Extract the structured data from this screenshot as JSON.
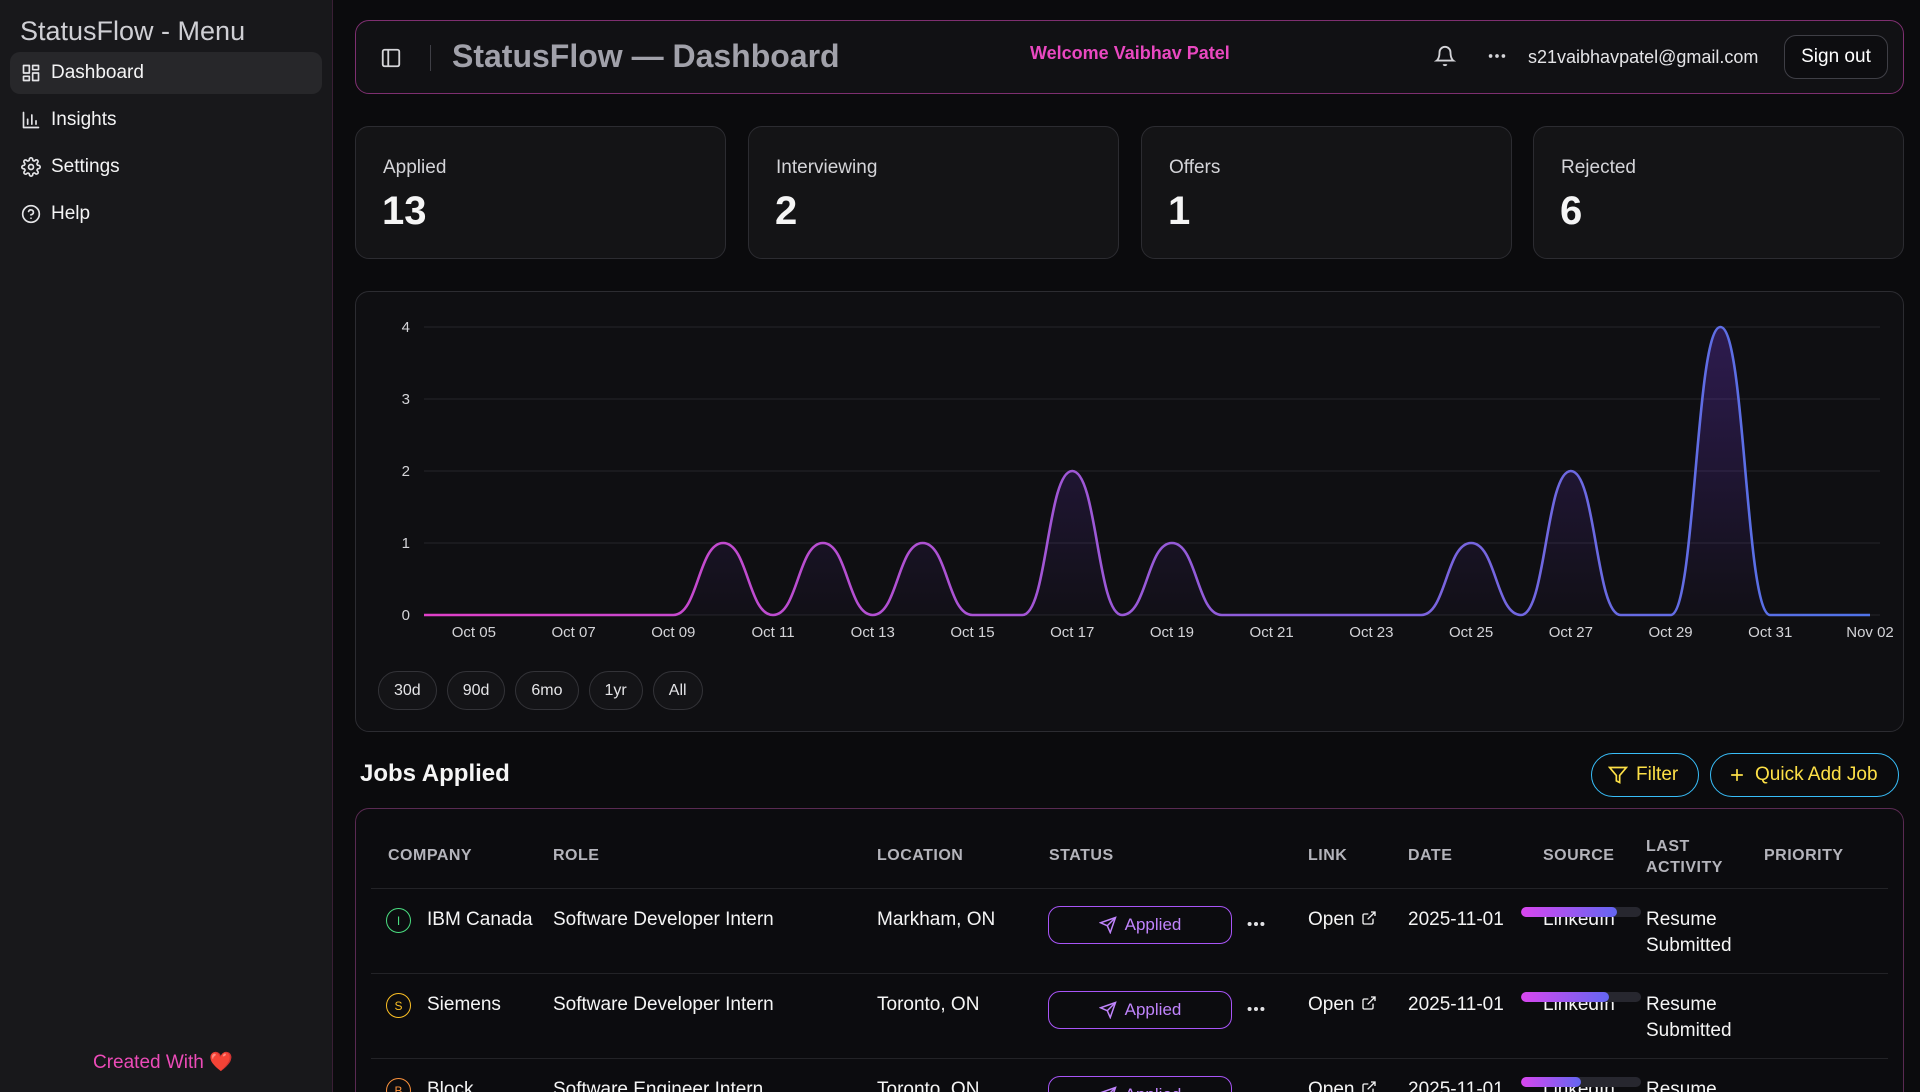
{
  "sidebar": {
    "title": "StatusFlow - Menu",
    "items": [
      {
        "label": "Dashboard",
        "icon": "dashboard-icon",
        "active": true
      },
      {
        "label": "Insights",
        "icon": "bar-chart-icon",
        "active": false
      },
      {
        "label": "Settings",
        "icon": "gear-icon",
        "active": false
      },
      {
        "label": "Help",
        "icon": "help-circle-icon",
        "active": false
      }
    ],
    "footer": "Created With ❤️"
  },
  "header": {
    "title": "StatusFlow — Dashboard",
    "welcome": "Welcome Vaibhav Patel",
    "email": "s21vaibhavpatel@gmail.com",
    "sign_out": "Sign out"
  },
  "stats": [
    {
      "label": "Applied",
      "value": "13"
    },
    {
      "label": "Interviewing",
      "value": "2"
    },
    {
      "label": "Offers",
      "value": "1"
    },
    {
      "label": "Rejected",
      "value": "6"
    }
  ],
  "chart_data": {
    "type": "area",
    "title": "",
    "xlabel": "",
    "ylabel": "",
    "x": [
      "Oct 04",
      "Oct 05",
      "Oct 06",
      "Oct 07",
      "Oct 08",
      "Oct 09",
      "Oct 10",
      "Oct 11",
      "Oct 12",
      "Oct 13",
      "Oct 14",
      "Oct 15",
      "Oct 16",
      "Oct 17",
      "Oct 18",
      "Oct 19",
      "Oct 20",
      "Oct 21",
      "Oct 22",
      "Oct 23",
      "Oct 24",
      "Oct 25",
      "Oct 26",
      "Oct 27",
      "Oct 28",
      "Oct 29",
      "Oct 30",
      "Oct 31",
      "Nov 01",
      "Nov 02"
    ],
    "values": [
      0,
      0,
      0,
      0,
      0,
      0,
      1,
      0,
      1,
      0,
      1,
      0,
      0,
      2,
      0,
      1,
      0,
      0,
      0,
      0,
      0,
      1,
      0,
      2,
      0,
      0,
      4,
      0,
      0,
      0
    ],
    "x_tick_labels": [
      "Oct 05",
      "Oct 07",
      "Oct 09",
      "Oct 11",
      "Oct 13",
      "Oct 15",
      "Oct 17",
      "Oct 19",
      "Oct 21",
      "Oct 23",
      "Oct 25",
      "Oct 27",
      "Oct 29",
      "Oct 31",
      "Nov 02"
    ],
    "y_ticks": [
      0,
      1,
      2,
      3,
      4
    ],
    "ylim": [
      0,
      4
    ],
    "grid": true,
    "colors": {
      "start": "#e040c8",
      "end": "#4f73e8"
    }
  },
  "range_buttons": [
    "30d",
    "90d",
    "6mo",
    "1yr",
    "All"
  ],
  "jobs": {
    "title": "Jobs Applied",
    "filter_label": "Filter",
    "quick_add_label": "Quick Add Job",
    "columns": [
      "COMPANY",
      "ROLE",
      "LOCATION",
      "STATUS",
      "LINK",
      "DATE",
      "SOURCE",
      "LAST ACTIVITY",
      "PRIORITY"
    ],
    "rows": [
      {
        "initial": "I",
        "initial_color": "#4ade80",
        "company": "IBM Canada",
        "role": "Software Developer Intern",
        "location": "Markham, ON",
        "status": "Applied",
        "link": "Open",
        "date": "2025-11-01",
        "source": "LinkedIn",
        "last_activity": "Resume Submitted",
        "priority": 0.8
      },
      {
        "initial": "S",
        "initial_color": "#fbbf24",
        "company": "Siemens",
        "role": "Software Developer Intern",
        "location": "Toronto, ON",
        "status": "Applied",
        "link": "Open",
        "date": "2025-11-01",
        "source": "LinkedIn",
        "last_activity": "Resume Submitted",
        "priority": 0.73
      },
      {
        "initial": "B",
        "initial_color": "#fb923c",
        "company": "Block",
        "role": "Software Engineer Intern",
        "location": "Toronto, ON",
        "status": "Applied",
        "link": "Open",
        "date": "2025-11-01",
        "source": "LinkedIn",
        "last_activity": "Resume Submitted",
        "priority": 0.5
      }
    ]
  }
}
